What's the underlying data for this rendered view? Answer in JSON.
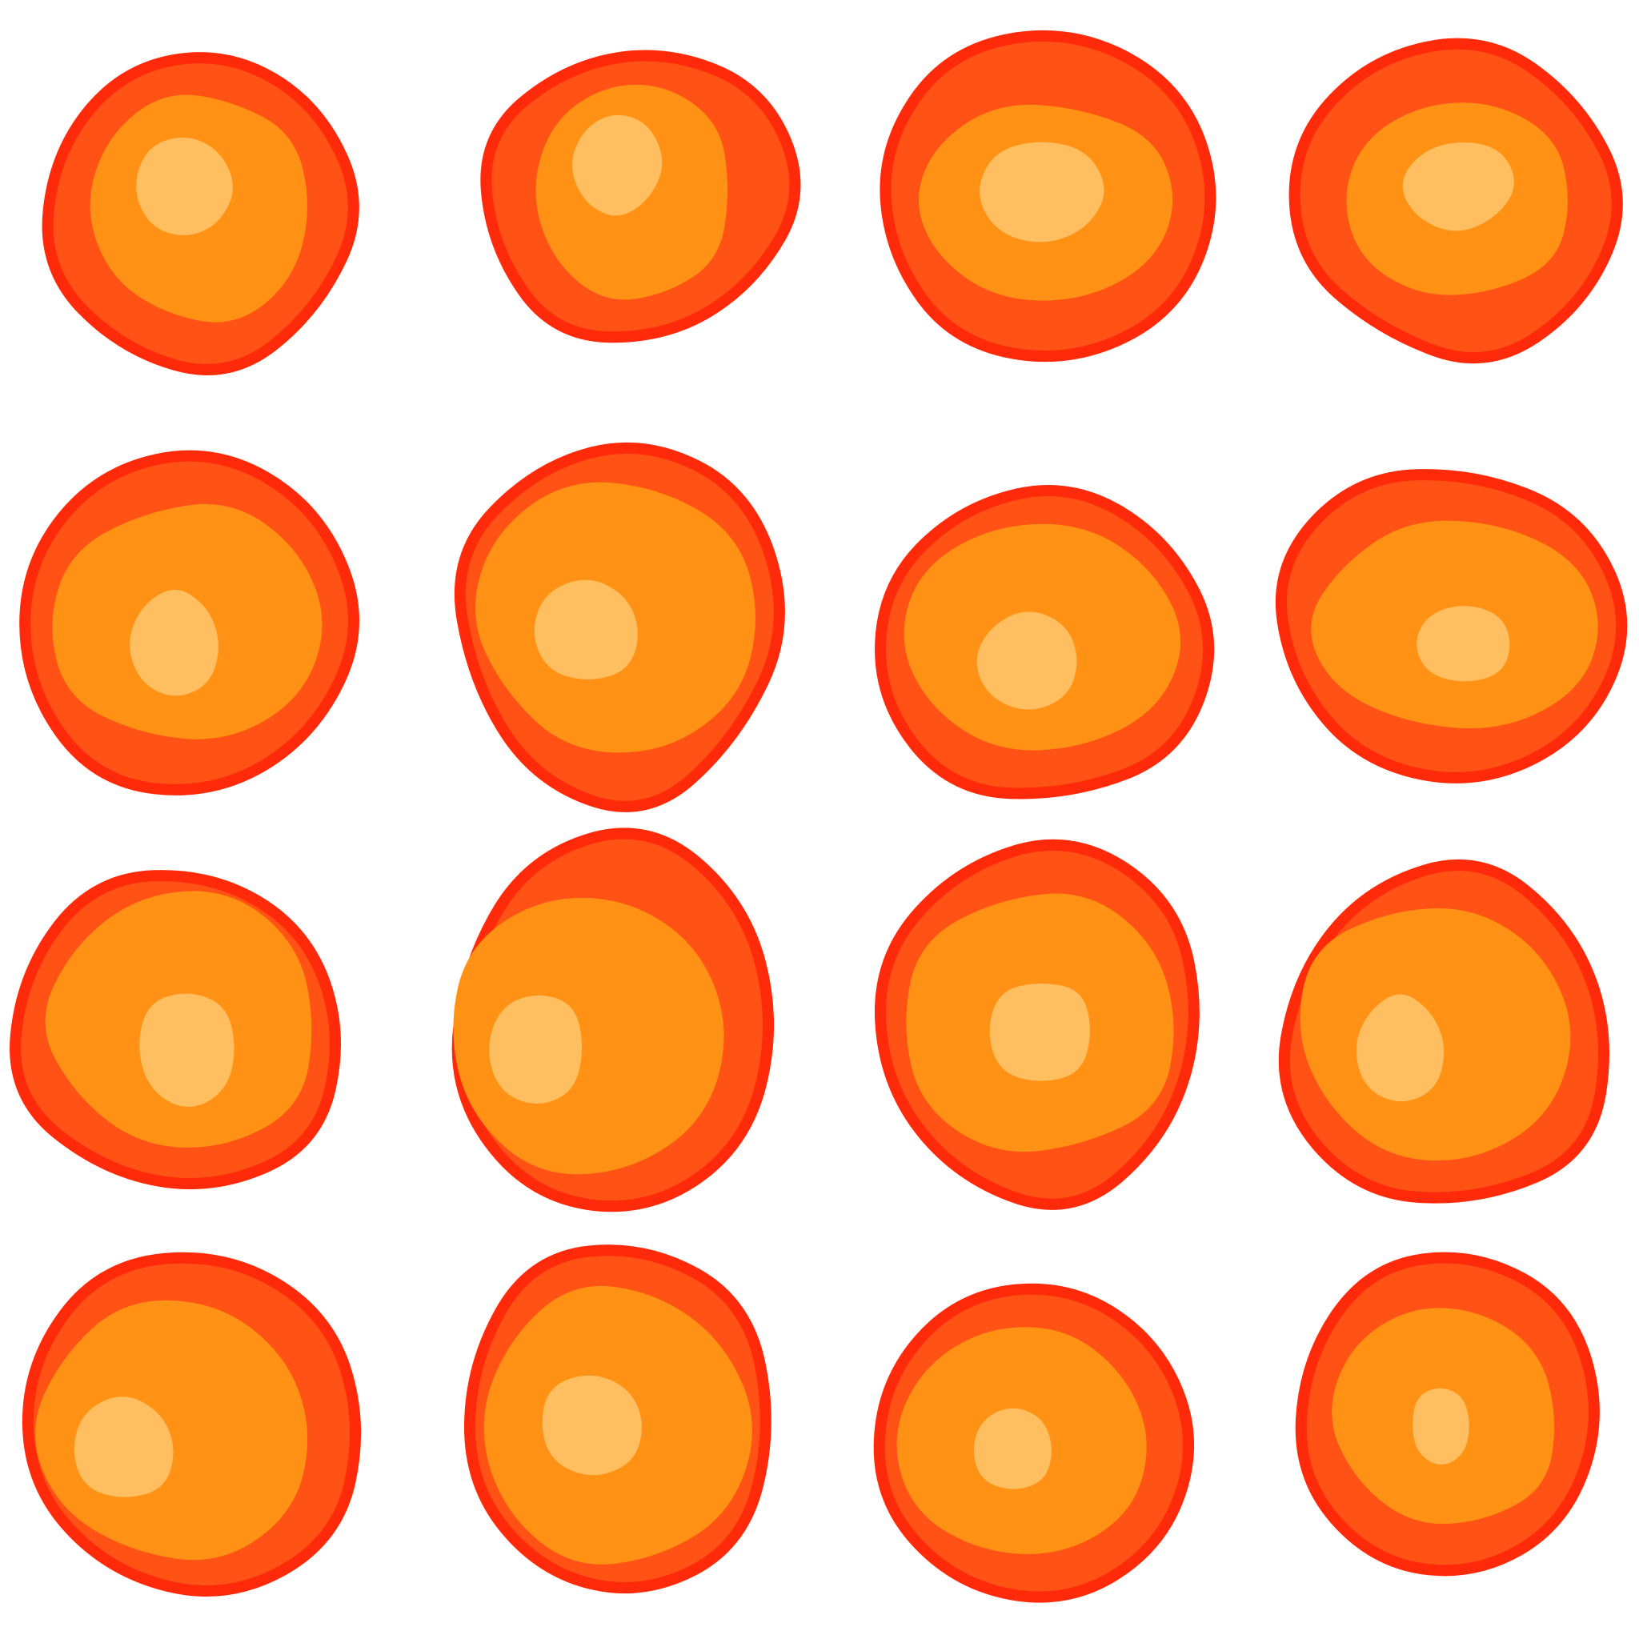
{
  "artwork": {
    "rows": 4,
    "columns": 4,
    "motif": "blob-icon",
    "background_color": "#ffffff",
    "colors": {
      "outline": "#ff2a0a",
      "outer_layer": "#ff5214",
      "middle_layer": "#ff9214",
      "inner_core": "#ffbe5f"
    }
  }
}
